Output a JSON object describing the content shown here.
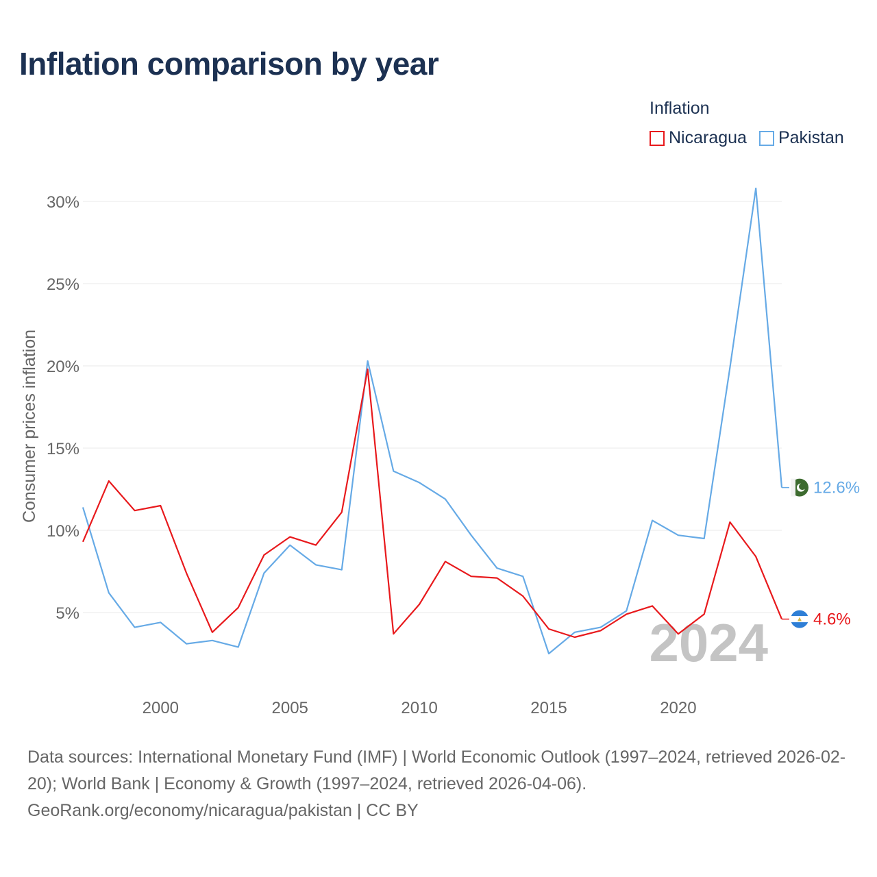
{
  "title": "Inflation comparison by year",
  "legend": {
    "title": "Inflation",
    "items": [
      {
        "label": "Nicaragua",
        "color": "#e8191c"
      },
      {
        "label": "Pakistan",
        "color": "#66aae6"
      }
    ]
  },
  "chart_data": {
    "type": "line",
    "title": "Inflation comparison by year",
    "xlabel": "",
    "ylabel": "Consumer prices inflation",
    "xlim": [
      1997,
      2024
    ],
    "ylim": [
      0,
      31
    ],
    "x_ticks": [
      2000,
      2005,
      2010,
      2015,
      2020
    ],
    "y_ticks": [
      5,
      10,
      15,
      20,
      25,
      30
    ],
    "y_tick_labels": [
      "5%",
      "10%",
      "15%",
      "20%",
      "25%",
      "30%"
    ],
    "grid": true,
    "legend_position": "top-right",
    "x": [
      1997,
      1998,
      1999,
      2000,
      2001,
      2002,
      2003,
      2004,
      2005,
      2006,
      2007,
      2008,
      2009,
      2010,
      2011,
      2012,
      2013,
      2014,
      2015,
      2016,
      2017,
      2018,
      2019,
      2020,
      2021,
      2022,
      2023,
      2024
    ],
    "series": [
      {
        "name": "Nicaragua",
        "color": "#e8191c",
        "values": [
          9.3,
          13.0,
          11.2,
          11.5,
          7.4,
          3.8,
          5.3,
          8.5,
          9.6,
          9.1,
          11.1,
          19.8,
          3.7,
          5.5,
          8.1,
          7.2,
          7.1,
          6.0,
          4.0,
          3.5,
          3.9,
          4.9,
          5.4,
          3.7,
          4.9,
          10.5,
          8.4,
          4.6
        ],
        "end_label": "4.6%",
        "flag_icon": "nicaragua-flag-icon"
      },
      {
        "name": "Pakistan",
        "color": "#66aae6",
        "values": [
          11.4,
          6.2,
          4.1,
          4.4,
          3.1,
          3.3,
          2.9,
          7.4,
          9.1,
          7.9,
          7.6,
          20.3,
          13.6,
          12.9,
          11.9,
          9.7,
          7.7,
          7.2,
          2.5,
          3.8,
          4.1,
          5.1,
          10.6,
          9.7,
          9.5,
          19.9,
          30.8,
          12.6
        ],
        "end_label": "12.6%",
        "flag_icon": "pakistan-flag-icon"
      }
    ],
    "year_watermark": "2024"
  },
  "footer": {
    "sources": "Data sources: International Monetary Fund (IMF) | World Economic Outlook (1997–2024, retrieved 2026-02-20); World Bank | Economy & Growth (1997–2024, retrieved 2026-04-06).",
    "credit": "GeoRank.org/economy/nicaragua/pakistan | CC BY"
  }
}
